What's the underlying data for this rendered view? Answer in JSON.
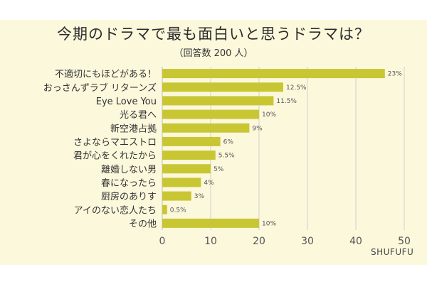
{
  "chart_data": {
    "type": "bar",
    "orientation": "horizontal",
    "title": "今期のドラマで最も面白いと思うドラマは？",
    "subtitle": "（回答数 200 人）",
    "categories": [
      "不適切にもほどがある！",
      "おっさんずラブ リターンズ",
      "Eye Love You",
      "光る君へ",
      "新空港占拠",
      "さよならマエストロ",
      "君が心をくれたから",
      "離婚しない男",
      "春になったら",
      "厨房のありす",
      "アイのない恋人たち",
      "その他"
    ],
    "values": [
      46,
      25,
      23,
      20,
      18,
      12,
      11,
      10,
      8,
      6,
      1,
      20
    ],
    "data_labels": [
      "23%",
      "12.5%",
      "11.5%",
      "10%",
      "9%",
      "6%",
      "5.5%",
      "5%",
      "4%",
      "3%",
      "0.5%",
      "10%"
    ],
    "xlim": [
      0,
      50
    ],
    "xticks": [
      "0",
      "10",
      "20",
      "30",
      "40",
      "50"
    ],
    "grid": true,
    "bar_color": "#c9c634"
  },
  "brand": "SHUFUFU"
}
